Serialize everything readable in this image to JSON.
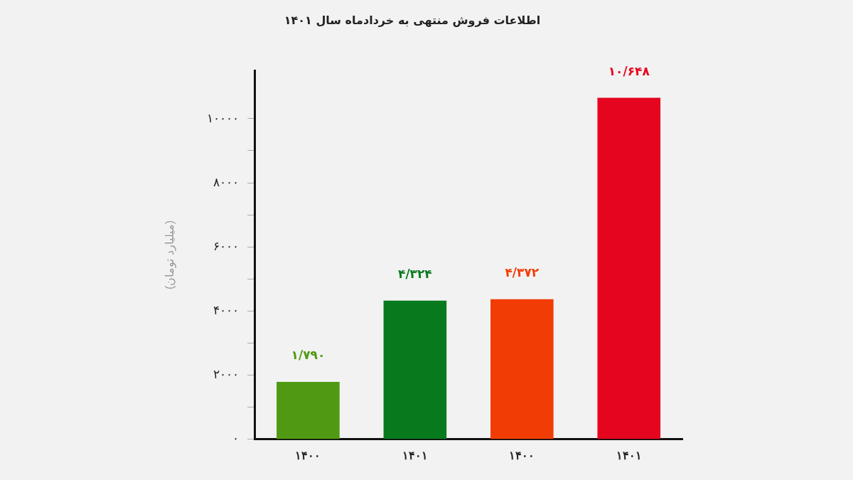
{
  "chart_data": {
    "type": "bar",
    "title": "اطلاعات فروش منتهی به خردادماه سال ۱۴۰۱",
    "ylabel": "(میلیارد تومان)",
    "categories": [
      "۱۴۰۰",
      "۱۴۰۱",
      "۱۴۰۰",
      "۱۴۰۱"
    ],
    "values": [
      1790,
      4324,
      4372,
      10648
    ],
    "colors": [
      "#4f9a12",
      "#087a1e",
      "#f23c05",
      "#e6051e"
    ],
    "value_labels": [
      "۱/۷۹۰",
      "۴/۳۲۴",
      "۴/۳۷۲",
      "۱۰/۶۴۸"
    ],
    "ylim": [
      0,
      11500
    ],
    "yticks": [
      {
        "value": 0,
        "label": "۰"
      },
      {
        "value": 1000,
        "label": null
      },
      {
        "value": 2000,
        "label": "۲۰۰۰"
      },
      {
        "value": 3000,
        "label": null
      },
      {
        "value": 4000,
        "label": "۴۰۰۰"
      },
      {
        "value": 5000,
        "label": null
      },
      {
        "value": 6000,
        "label": "۶۰۰۰"
      },
      {
        "value": 7000,
        "label": null
      },
      {
        "value": 8000,
        "label": "۸۰۰۰"
      },
      {
        "value": 9000,
        "label": null
      },
      {
        "value": 10000,
        "label": "۱۰۰۰۰"
      }
    ],
    "grid": false,
    "legend": false
  }
}
